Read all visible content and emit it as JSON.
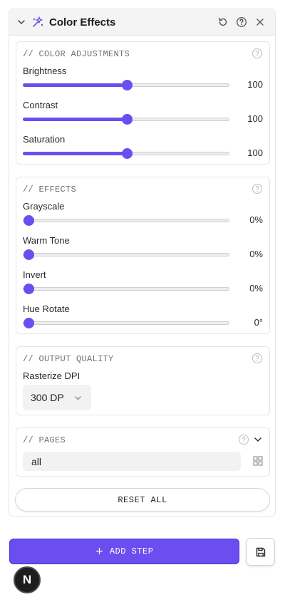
{
  "panel": {
    "title": "Color Effects",
    "icons": {
      "collapse": "chevron-down-icon",
      "effect": "sparkle-effect-icon",
      "reset": "rotate-ccw-icon",
      "help": "help-circle-icon",
      "close": "close-icon"
    }
  },
  "color_adjustments": {
    "title": "// COLOR ADJUSTMENTS",
    "sliders": [
      {
        "label": "Brightness",
        "value_text": "100",
        "fraction": 0.5
      },
      {
        "label": "Contrast",
        "value_text": "100",
        "fraction": 0.5
      },
      {
        "label": "Saturation",
        "value_text": "100",
        "fraction": 0.5
      }
    ]
  },
  "effects": {
    "title": "// EFFECTS",
    "sliders": [
      {
        "label": "Grayscale",
        "value_text": "0%",
        "fraction": 0
      },
      {
        "label": "Warm Tone",
        "value_text": "0%",
        "fraction": 0
      },
      {
        "label": "Invert",
        "value_text": "0%",
        "fraction": 0
      },
      {
        "label": "Hue Rotate",
        "value_text": "0°",
        "fraction": 0
      }
    ]
  },
  "output_quality": {
    "title": "// OUTPUT QUALITY",
    "dpi_label": "Rasterize DPI",
    "dpi_value": "300 DP"
  },
  "pages": {
    "title": "// PAGES",
    "value": "all"
  },
  "reset_label": "RESET ALL",
  "add_step_label": "ADD STEP",
  "add_step_plus": "+",
  "avatar_letter": "N",
  "colors": {
    "accent": "#6c4ef0"
  }
}
